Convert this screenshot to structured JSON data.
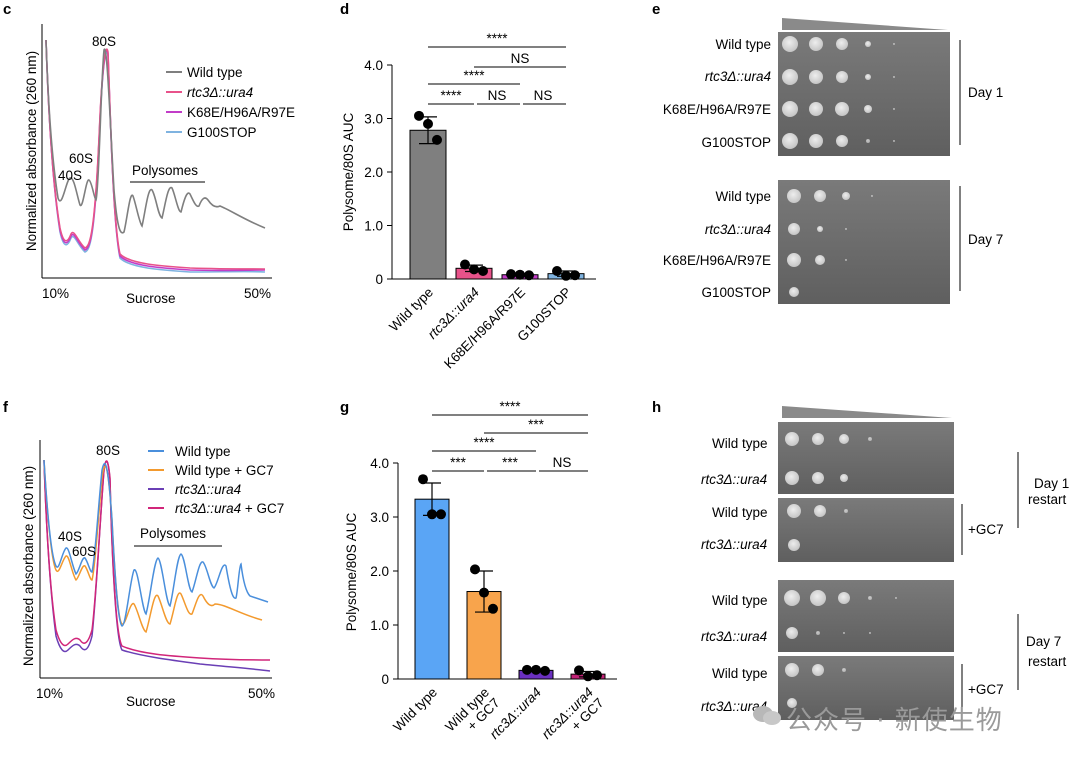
{
  "panels": {
    "c": {
      "letter": "c",
      "ylabel": "Normalized absorbance (260 nm)",
      "xlabel": "Sucrose",
      "x_start": "10%",
      "x_end": "50%",
      "peak_labels": [
        "40S",
        "60S",
        "80S"
      ],
      "polysomes_label": "Polysomes",
      "legend": [
        {
          "name": "Wild type",
          "color": "#7f7f7f",
          "italic": false
        },
        {
          "name": "rtc3Δ::ura4",
          "color": "#e8528a",
          "italic": true
        },
        {
          "name": "K68E/H96A/R97E",
          "color": "#c23cc8",
          "italic": false
        },
        {
          "name": "G100STOP",
          "color": "#7fb3e0",
          "italic": false
        }
      ]
    },
    "d": {
      "letter": "d",
      "sig": [
        "****",
        "NS",
        "****",
        "****",
        "NS",
        "NS"
      ],
      "chart_data": {
        "type": "bar",
        "ylabel": "Polysome/80S AUC",
        "ylim": [
          0,
          4
        ],
        "yticks": [
          "0",
          "1.0",
          "2.0",
          "3.0",
          "4.0"
        ],
        "categories": [
          "Wild type",
          "rtc3Δ::ura4",
          "K68E/H96A/R97E",
          "G100STOP"
        ],
        "italic": [
          false,
          true,
          false,
          false
        ],
        "values": [
          2.78,
          0.2,
          0.08,
          0.1
        ],
        "errors": [
          0.25,
          0.06,
          0.02,
          0.05
        ],
        "colors": [
          "#7f7f7f",
          "#e8528a",
          "#c23cc8",
          "#7fb3e0"
        ],
        "points": [
          [
            3.05,
            2.9,
            2.6
          ],
          [
            0.27,
            0.18,
            0.15
          ],
          [
            0.09,
            0.08,
            0.07
          ],
          [
            0.15,
            0.06,
            0.07
          ]
        ]
      }
    },
    "e": {
      "letter": "e",
      "day1": {
        "label": "Day 1",
        "rows": [
          {
            "name": "Wild type",
            "italic": false
          },
          {
            "name": "rtc3Δ::ura4",
            "italic": true
          },
          {
            "name": "K68E/H96A/R97E",
            "italic": false
          },
          {
            "name": "G100STOP",
            "italic": false
          }
        ]
      },
      "day7": {
        "label": "Day 7",
        "rows": [
          {
            "name": "Wild type",
            "italic": false
          },
          {
            "name": "rtc3Δ::ura4",
            "italic": true
          },
          {
            "name": "K68E/H96A/R97E",
            "italic": false
          },
          {
            "name": "G100STOP",
            "italic": false
          }
        ]
      }
    },
    "f": {
      "letter": "f",
      "ylabel": "Normalized absorbance (260 nm)",
      "xlabel": "Sucrose",
      "x_start": "10%",
      "x_end": "50%",
      "peak_labels": [
        "40S",
        "60S",
        "80S"
      ],
      "polysomes_label": "Polysomes",
      "legend": [
        {
          "name": "Wild type",
          "color": "#4a8fdc",
          "parts": [
            {
              "t": "Wild type",
              "i": false
            }
          ]
        },
        {
          "name": "Wild type + GC7",
          "color": "#f39a2e",
          "parts": [
            {
              "t": "Wild type + GC7",
              "i": false
            }
          ]
        },
        {
          "name": "rtc3Δ::ura4",
          "color": "#6a3fb5",
          "parts": [
            {
              "t": "rtc3Δ::ura4",
              "i": true
            }
          ]
        },
        {
          "name": "rtc3Δ::ura4 + GC7",
          "color": "#d1267a",
          "parts": [
            {
              "t": "rtc3Δ::ura4",
              "i": true
            },
            {
              "t": " + GC7",
              "i": false
            }
          ]
        }
      ]
    },
    "g": {
      "letter": "g",
      "sig": [
        "****",
        "***",
        "****",
        "***",
        "***",
        "NS"
      ],
      "chart_data": {
        "type": "bar",
        "ylabel": "Polysome/80S AUC",
        "ylim": [
          0,
          4
        ],
        "yticks": [
          "0",
          "1.0",
          "2.0",
          "3.0",
          "4.0"
        ],
        "categories": [
          "Wild type",
          "Wild type + GC7",
          "rtc3Δ::ura4",
          "rtc3Δ::ura4 + GC7"
        ],
        "values": [
          3.33,
          1.62,
          0.16,
          0.09
        ],
        "errors": [
          0.3,
          0.38,
          0.02,
          0.05
        ],
        "colors": [
          "#5aa5f5",
          "#f8a44c",
          "#6a2fc0",
          "#c22377"
        ],
        "points": [
          [
            3.7,
            3.05,
            3.05
          ],
          [
            2.03,
            1.6,
            1.3
          ],
          [
            0.17,
            0.17,
            0.15
          ],
          [
            0.16,
            0.05,
            0.07
          ]
        ]
      }
    },
    "h": {
      "letter": "h",
      "gc7": "+GC7",
      "day1": {
        "label1": "Day 1",
        "label2": "restart"
      },
      "day7": {
        "label1": "Day 7",
        "label2": "restart"
      },
      "rows_wt": "Wild type",
      "rows_mut": "rtc3Δ::ura4"
    }
  },
  "watermark": "公众号 · 新使生物"
}
